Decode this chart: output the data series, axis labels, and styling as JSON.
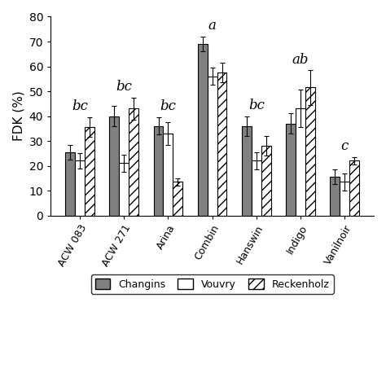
{
  "categories": [
    "ACW 083",
    "ACW 271",
    "Arina",
    "Combin",
    "Hanswin",
    "Indigo",
    "Vanilnoir"
  ],
  "changins": [
    25.5,
    40.0,
    36.0,
    69.0,
    36.0,
    37.0,
    15.5
  ],
  "vouvry": [
    22.0,
    21.0,
    33.0,
    56.0,
    22.0,
    43.0,
    13.5
  ],
  "reckenholz": [
    35.5,
    43.0,
    13.5,
    57.5,
    28.0,
    51.5,
    22.0
  ],
  "changins_err": [
    3.0,
    4.0,
    3.5,
    3.0,
    4.0,
    4.0,
    3.0
  ],
  "vouvry_err": [
    3.0,
    3.5,
    4.5,
    3.5,
    3.5,
    7.5,
    3.5
  ],
  "reckenholz_err": [
    4.0,
    4.5,
    1.5,
    4.0,
    4.0,
    7.0,
    1.5
  ],
  "group_labels": [
    "bc",
    "bc",
    "bc",
    "a",
    "bc",
    "ab",
    "c"
  ],
  "ylabel": "FDK (%)",
  "ylim": [
    0,
    80
  ],
  "yticks": [
    0,
    10,
    20,
    30,
    40,
    50,
    60,
    70,
    80
  ],
  "changins_color": "#808080",
  "vouvry_color": "#ffffff",
  "bar_edgecolor": "#000000",
  "legend_labels": [
    "Changins",
    "Vouvry",
    "Reckenholz"
  ],
  "hatch_reckenholz": "///",
  "bar_width": 0.22,
  "figsize": [
    4.74,
    4.74
  ],
  "dpi": 100
}
